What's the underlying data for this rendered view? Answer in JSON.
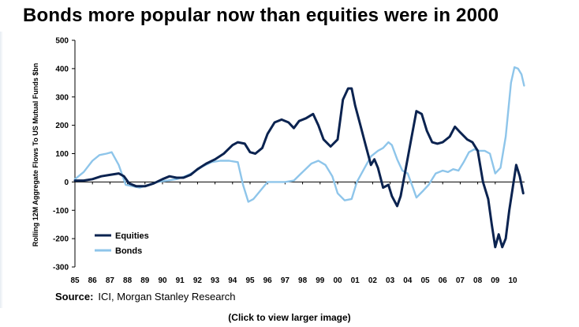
{
  "title": "Bonds more popular now than equities were in 2000",
  "source_label": "Source:",
  "source_text": "ICI, Morgan Stanley Research",
  "caption": "(Click to view larger image)",
  "chart_data": {
    "type": "line",
    "title": "Bonds more popular now than equities were in 2000",
    "ylabel": "Rolling 12M Aggregate Flows To US Mutual Funds $bn",
    "xlabel": "",
    "ylim": [
      -300,
      500
    ],
    "yticks": [
      -300,
      -200,
      -100,
      0,
      100,
      200,
      300,
      400,
      500
    ],
    "xlim": [
      1985,
      2010.9
    ],
    "xtick_labels": [
      "85",
      "86",
      "87",
      "88",
      "89",
      "90",
      "91",
      "92",
      "93",
      "94",
      "95",
      "96",
      "97",
      "98",
      "99",
      "00",
      "01",
      "02",
      "03",
      "04",
      "05",
      "06",
      "07",
      "08",
      "09",
      "10"
    ],
    "grid": false,
    "legend": "bottom-left",
    "series": [
      {
        "name": "Equities",
        "color": "#0b2350",
        "points": [
          [
            1985.0,
            5
          ],
          [
            1985.5,
            5
          ],
          [
            1986.0,
            10
          ],
          [
            1986.5,
            20
          ],
          [
            1987.0,
            25
          ],
          [
            1987.5,
            30
          ],
          [
            1987.8,
            20
          ],
          [
            1988.1,
            -5
          ],
          [
            1988.5,
            -15
          ],
          [
            1989.0,
            -15
          ],
          [
            1989.5,
            -5
          ],
          [
            1990.0,
            10
          ],
          [
            1990.4,
            20
          ],
          [
            1990.8,
            15
          ],
          [
            1991.2,
            15
          ],
          [
            1991.6,
            25
          ],
          [
            1992.0,
            45
          ],
          [
            1992.5,
            65
          ],
          [
            1993.0,
            80
          ],
          [
            1993.5,
            100
          ],
          [
            1994.0,
            130
          ],
          [
            1994.3,
            140
          ],
          [
            1994.7,
            135
          ],
          [
            1995.0,
            105
          ],
          [
            1995.3,
            100
          ],
          [
            1995.7,
            120
          ],
          [
            1996.0,
            170
          ],
          [
            1996.4,
            210
          ],
          [
            1996.8,
            220
          ],
          [
            1997.2,
            210
          ],
          [
            1997.5,
            190
          ],
          [
            1997.8,
            215
          ],
          [
            1998.2,
            225
          ],
          [
            1998.6,
            240
          ],
          [
            1998.9,
            200
          ],
          [
            1999.2,
            150
          ],
          [
            1999.6,
            125
          ],
          [
            2000.0,
            150
          ],
          [
            2000.3,
            290
          ],
          [
            2000.6,
            330
          ],
          [
            2000.8,
            330
          ],
          [
            2001.0,
            270
          ],
          [
            2001.3,
            200
          ],
          [
            2001.6,
            130
          ],
          [
            2001.9,
            60
          ],
          [
            2002.1,
            80
          ],
          [
            2002.3,
            50
          ],
          [
            2002.6,
            -20
          ],
          [
            2002.9,
            -10
          ],
          [
            2003.1,
            -50
          ],
          [
            2003.4,
            -85
          ],
          [
            2003.6,
            -50
          ],
          [
            2003.9,
            50
          ],
          [
            2004.2,
            150
          ],
          [
            2004.5,
            250
          ],
          [
            2004.8,
            240
          ],
          [
            2005.1,
            180
          ],
          [
            2005.4,
            140
          ],
          [
            2005.7,
            135
          ],
          [
            2006.0,
            140
          ],
          [
            2006.4,
            160
          ],
          [
            2006.7,
            195
          ],
          [
            2007.0,
            175
          ],
          [
            2007.4,
            150
          ],
          [
            2007.7,
            140
          ],
          [
            2008.0,
            110
          ],
          [
            2008.3,
            0
          ],
          [
            2008.6,
            -60
          ],
          [
            2008.8,
            -150
          ],
          [
            2009.0,
            -230
          ],
          [
            2009.2,
            -185
          ],
          [
            2009.4,
            -230
          ],
          [
            2009.6,
            -200
          ],
          [
            2009.8,
            -100
          ],
          [
            2010.0,
            -20
          ],
          [
            2010.2,
            60
          ],
          [
            2010.4,
            20
          ],
          [
            2010.6,
            -40
          ]
        ]
      },
      {
        "name": "Bonds",
        "color": "#8ec5ea",
        "points": [
          [
            1985.0,
            10
          ],
          [
            1985.5,
            35
          ],
          [
            1986.0,
            75
          ],
          [
            1986.4,
            95
          ],
          [
            1986.8,
            100
          ],
          [
            1987.1,
            105
          ],
          [
            1987.5,
            60
          ],
          [
            1987.9,
            -10
          ],
          [
            1988.3,
            -15
          ],
          [
            1988.7,
            -20
          ],
          [
            1989.2,
            -10
          ],
          [
            1989.7,
            0
          ],
          [
            1990.3,
            5
          ],
          [
            1990.8,
            10
          ],
          [
            1991.3,
            20
          ],
          [
            1991.8,
            35
          ],
          [
            1992.3,
            55
          ],
          [
            1992.8,
            70
          ],
          [
            1993.3,
            75
          ],
          [
            1993.8,
            75
          ],
          [
            1994.3,
            70
          ],
          [
            1994.6,
            -10
          ],
          [
            1994.9,
            -70
          ],
          [
            1995.2,
            -60
          ],
          [
            1995.6,
            -30
          ],
          [
            1996.0,
            0
          ],
          [
            1996.5,
            0
          ],
          [
            1997.0,
            0
          ],
          [
            1997.5,
            5
          ],
          [
            1998.0,
            35
          ],
          [
            1998.5,
            65
          ],
          [
            1998.9,
            75
          ],
          [
            1999.3,
            60
          ],
          [
            1999.7,
            20
          ],
          [
            2000.0,
            -40
          ],
          [
            2000.4,
            -65
          ],
          [
            2000.8,
            -60
          ],
          [
            2001.1,
            0
          ],
          [
            2001.5,
            45
          ],
          [
            2001.9,
            90
          ],
          [
            2002.3,
            110
          ],
          [
            2002.6,
            120
          ],
          [
            2002.9,
            140
          ],
          [
            2003.1,
            130
          ],
          [
            2003.4,
            80
          ],
          [
            2003.7,
            40
          ],
          [
            2004.0,
            30
          ],
          [
            2004.3,
            -20
          ],
          [
            2004.5,
            -55
          ],
          [
            2004.9,
            -30
          ],
          [
            2005.2,
            -10
          ],
          [
            2005.6,
            30
          ],
          [
            2006.0,
            40
          ],
          [
            2006.3,
            35
          ],
          [
            2006.6,
            45
          ],
          [
            2006.9,
            40
          ],
          [
            2007.2,
            70
          ],
          [
            2007.5,
            105
          ],
          [
            2007.8,
            115
          ],
          [
            2008.1,
            110
          ],
          [
            2008.4,
            110
          ],
          [
            2008.7,
            100
          ],
          [
            2009.0,
            30
          ],
          [
            2009.3,
            50
          ],
          [
            2009.6,
            160
          ],
          [
            2009.9,
            350
          ],
          [
            2010.1,
            405
          ],
          [
            2010.3,
            400
          ],
          [
            2010.5,
            380
          ],
          [
            2010.65,
            340
          ]
        ]
      }
    ]
  }
}
